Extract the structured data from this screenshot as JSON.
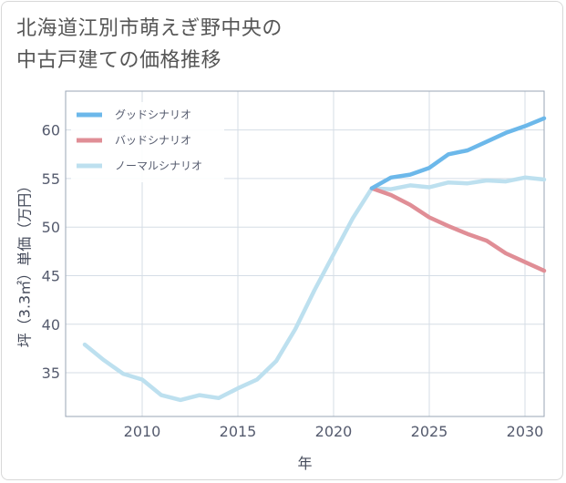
{
  "title_lines": [
    "北海道江別市萌えぎ野中央の",
    "中古戸建ての価格推移"
  ],
  "chart_data": {
    "type": "line",
    "xlabel": "年",
    "ylabel": "坪（3.3㎡）単価（万円）",
    "xlim": [
      2006,
      2031
    ],
    "ylim": [
      30.5,
      64
    ],
    "xticks": [
      2010,
      2015,
      2020,
      2025,
      2030
    ],
    "yticks": [
      35,
      40,
      45,
      50,
      55,
      60
    ],
    "legend_position": "top-left",
    "grid": true,
    "series": [
      {
        "name": "グッドシナリオ",
        "color": "#6cb8ea",
        "x": [
          2022,
          2023,
          2024,
          2025,
          2026,
          2027,
          2028,
          2029,
          2030,
          2031
        ],
        "y": [
          54.0,
          55.1,
          55.4,
          56.1,
          57.5,
          57.9,
          58.8,
          59.7,
          60.4,
          61.2
        ]
      },
      {
        "name": "バッドシナリオ",
        "color": "#e08e96",
        "x": [
          2022,
          2023,
          2024,
          2025,
          2026,
          2027,
          2028,
          2029,
          2030,
          2031
        ],
        "y": [
          54.0,
          53.3,
          52.3,
          51.0,
          50.1,
          49.3,
          48.6,
          47.3,
          46.4,
          45.5
        ]
      },
      {
        "name": "ノーマルシナリオ",
        "color": "#bde0ef",
        "x": [
          2007,
          2008,
          2009,
          2010,
          2011,
          2012,
          2013,
          2014,
          2015,
          2016,
          2017,
          2018,
          2019,
          2020,
          2021,
          2022,
          2023,
          2024,
          2025,
          2026,
          2027,
          2028,
          2029,
          2030,
          2031
        ],
        "y": [
          37.9,
          36.3,
          34.9,
          34.3,
          32.7,
          32.2,
          32.7,
          32.4,
          33.4,
          34.3,
          36.2,
          39.5,
          43.5,
          47.2,
          50.9,
          54.0,
          53.9,
          54.3,
          54.1,
          54.6,
          54.5,
          54.8,
          54.7,
          55.1,
          54.9
        ]
      }
    ]
  }
}
